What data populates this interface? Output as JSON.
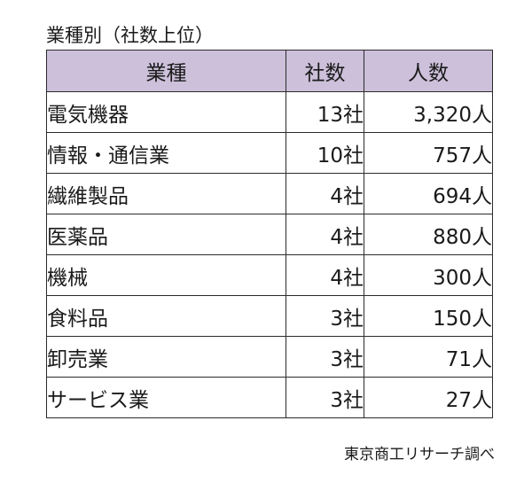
{
  "caption": "業種別（社数上位）",
  "table": {
    "headers": {
      "industry": "業種",
      "companies": "社数",
      "people": "人数"
    },
    "rows": [
      {
        "industry": "電気機器",
        "companies": "13社",
        "people": "3,320人"
      },
      {
        "industry": "情報・通信業",
        "companies": "10社",
        "people": "757人"
      },
      {
        "industry": "繊維製品",
        "companies": "4社",
        "people": "694人"
      },
      {
        "industry": "医薬品",
        "companies": "4社",
        "people": "880人"
      },
      {
        "industry": "機械",
        "companies": "4社",
        "people": "300人"
      },
      {
        "industry": "食料品",
        "companies": "3社",
        "people": "150人"
      },
      {
        "industry": "卸売業",
        "companies": "3社",
        "people": "71人"
      },
      {
        "industry": "サービス業",
        "companies": "3社",
        "people": "27人"
      }
    ]
  },
  "source": "東京商工リサーチ調べ",
  "colors": {
    "header_background": "#ccc0da",
    "border": "#2b2b2b",
    "text": "#1a1a1a"
  }
}
